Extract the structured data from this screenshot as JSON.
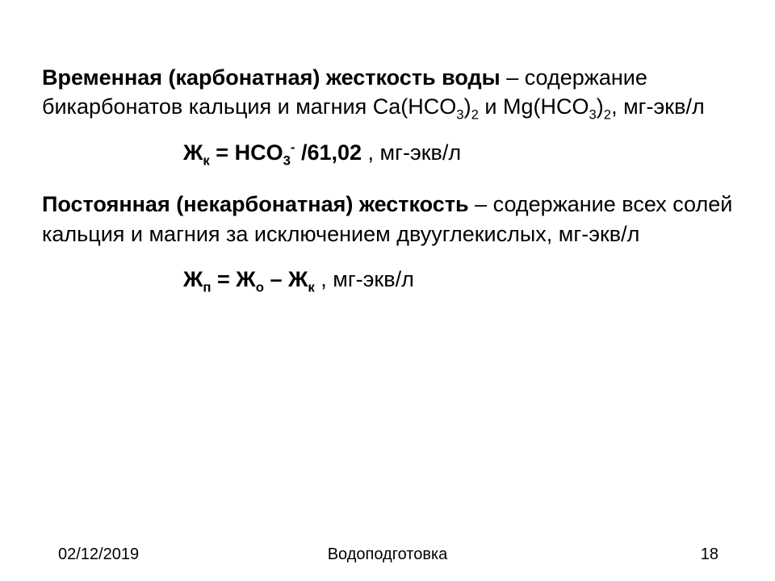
{
  "para1": {
    "boldLead": "Временная (карбонатная) жесткость воды",
    "rest1": " – содержание бикарбонатов кальция и магния Ca(HCO",
    "rest2": " и Mg(HCO",
    "tail": ", мг-экв/л"
  },
  "formula1": {
    "lhs": "Ж",
    "lhsSub": "к",
    "eq": " = HCO",
    "anionSub": "3",
    "anionSup": "-",
    "divisor": " /61,02",
    "unit": "   , мг-экв/л"
  },
  "para2": {
    "boldLead": "Постоянная (некарбонатная) жесткость",
    "rest": " – содержание всех солей кальция и магния за исключением двууглекислых, мг-экв/л"
  },
  "formula2": {
    "lhs": "Ж",
    "lhsSub": "п",
    "eq": " = Ж",
    "t1Sub": "о",
    "minus": " – Ж",
    "t2Sub": "к",
    "unit": "  , мг-экв/л"
  },
  "footer": {
    "date": "02/12/2019",
    "title": "Водоподготовка",
    "page": "18"
  },
  "style": {
    "background": "#ffffff",
    "textColor": "#000000",
    "bodyFontSize": 27,
    "footerFontSize": 20
  }
}
